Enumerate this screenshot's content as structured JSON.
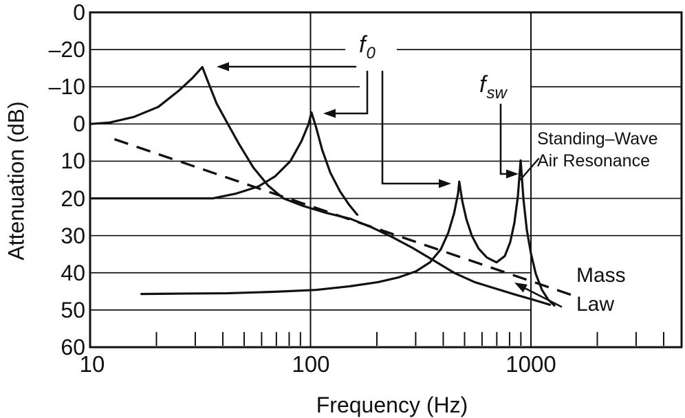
{
  "y_axis": {
    "title": "Attenuation (dB)",
    "tick_labels": [
      "0",
      "–20",
      "–10",
      "0",
      "10",
      "20",
      "30",
      "40",
      "50",
      "60"
    ]
  },
  "x_axis": {
    "title": "Frequency (Hz)",
    "tick_labels": [
      "10",
      "100",
      "1000"
    ],
    "minor_ticks_hz": [
      20,
      30,
      40,
      50,
      60,
      70,
      80,
      90,
      200,
      300,
      400,
      500,
      600,
      700,
      800,
      900,
      2000,
      3000,
      4000
    ]
  },
  "annotations": {
    "f0": {
      "base": "f",
      "sub": "0"
    },
    "fsw": {
      "base": "f",
      "sub": "sw"
    },
    "standing_wave": {
      "line1": "Standing–Wave",
      "line2": "Air Resonance"
    },
    "mass_law": {
      "line1": "Mass",
      "line2": "Law"
    }
  },
  "chart_data": {
    "type": "line",
    "x_scale": "log",
    "xlabel": "Frequency (Hz)",
    "ylabel": "Attenuation (dB)",
    "x_range_hz": [
      10,
      4900
    ],
    "y_axis_inverted": true,
    "y_gridline_step_db": 10,
    "y_top_gridline_implied_db": -30,
    "y_bottom_gridline_db": 60,
    "grid": "on",
    "series": [
      {
        "name": "resonance_curve_f0_32hz",
        "peak_hz": 32,
        "peak_db": -15.3,
        "points_hz_db": [
          [
            10,
            0
          ],
          [
            12.3,
            -0.4
          ],
          [
            15.8,
            -1.9
          ],
          [
            20.4,
            -4.6
          ],
          [
            25.2,
            -8.9
          ],
          [
            29.2,
            -12.4
          ],
          [
            32.3,
            -15.3
          ],
          [
            34.4,
            -11.1
          ],
          [
            37.5,
            -5.5
          ],
          [
            41.8,
            -0.4
          ],
          [
            47.5,
            5.5
          ],
          [
            55,
            11.7
          ],
          [
            64.3,
            16.6
          ],
          [
            75.3,
            20
          ],
          [
            92.2,
            22
          ],
          [
            118,
            23.9
          ],
          [
            152,
            25.5
          ],
          [
            188,
            27.7
          ],
          [
            233,
            30.3
          ],
          [
            290,
            33.3
          ],
          [
            360,
            36.6
          ],
          [
            448,
            40
          ],
          [
            555,
            42.5
          ],
          [
            687,
            44.2
          ],
          [
            852,
            45.9
          ],
          [
            1019,
            47.2
          ],
          [
            1219,
            48.6
          ]
        ]
      },
      {
        "name": "resonance_curve_f0_100hz",
        "peak_hz": 100,
        "peak_db": -3.1,
        "points_hz_db": [
          [
            10,
            20
          ],
          [
            36,
            20
          ],
          [
            46,
            18.7
          ],
          [
            58,
            16.8
          ],
          [
            69,
            14.1
          ],
          [
            81,
            10
          ],
          [
            91,
            4.6
          ],
          [
            98,
            0
          ],
          [
            101,
            -3.1
          ],
          [
            106,
            0.9
          ],
          [
            113,
            7
          ],
          [
            123,
            13.1
          ],
          [
            136,
            18.1
          ],
          [
            150,
            21.8
          ],
          [
            163,
            24.4
          ]
        ]
      },
      {
        "name": "double_peak_curve_470hz_and_standing_wave_900hz",
        "peak_hz": [
          470,
          900
        ],
        "peak_db": [
          15.5,
          9.8
        ],
        "points_hz_db": [
          [
            17.1,
            45.7
          ],
          [
            25,
            45.6
          ],
          [
            42,
            45.5
          ],
          [
            69,
            45.1
          ],
          [
            106,
            44.6
          ],
          [
            152,
            43.6
          ],
          [
            203,
            42.5
          ],
          [
            252,
            41.2
          ],
          [
            301,
            39.6
          ],
          [
            348,
            37.2
          ],
          [
            390,
            33.7
          ],
          [
            422,
            29.2
          ],
          [
            448,
            24
          ],
          [
            467,
            18.7
          ],
          [
            473,
            15.5
          ],
          [
            488,
            20.7
          ],
          [
            509,
            25.5
          ],
          [
            539,
            30
          ],
          [
            579,
            33.5
          ],
          [
            631,
            35.9
          ],
          [
            698,
            37.2
          ],
          [
            761,
            35.5
          ],
          [
            805,
            31.8
          ],
          [
            841,
            26.6
          ],
          [
            872,
            19.6
          ],
          [
            898,
            9.8
          ],
          [
            925,
            20.3
          ],
          [
            958,
            28.5
          ],
          [
            1000,
            34.8
          ],
          [
            1052,
            40.3
          ],
          [
            1122,
            44.6
          ],
          [
            1197,
            47.2
          ],
          [
            1277,
            48.8
          ]
        ]
      }
    ],
    "mass_law_line": {
      "style": "dashed",
      "slope_db_per_decade": 20,
      "points_hz_db": [
        [
          12.9,
          4.1
        ],
        [
          1517,
          45.9
        ]
      ]
    },
    "annotation_targets": {
      "f0_arrows_point_to_peaks_hz": [
        32,
        100,
        470
      ],
      "fsw_arrow_points_to_peak_hz": 900,
      "standing_wave_air_resonance_peak_hz": 900
    }
  }
}
